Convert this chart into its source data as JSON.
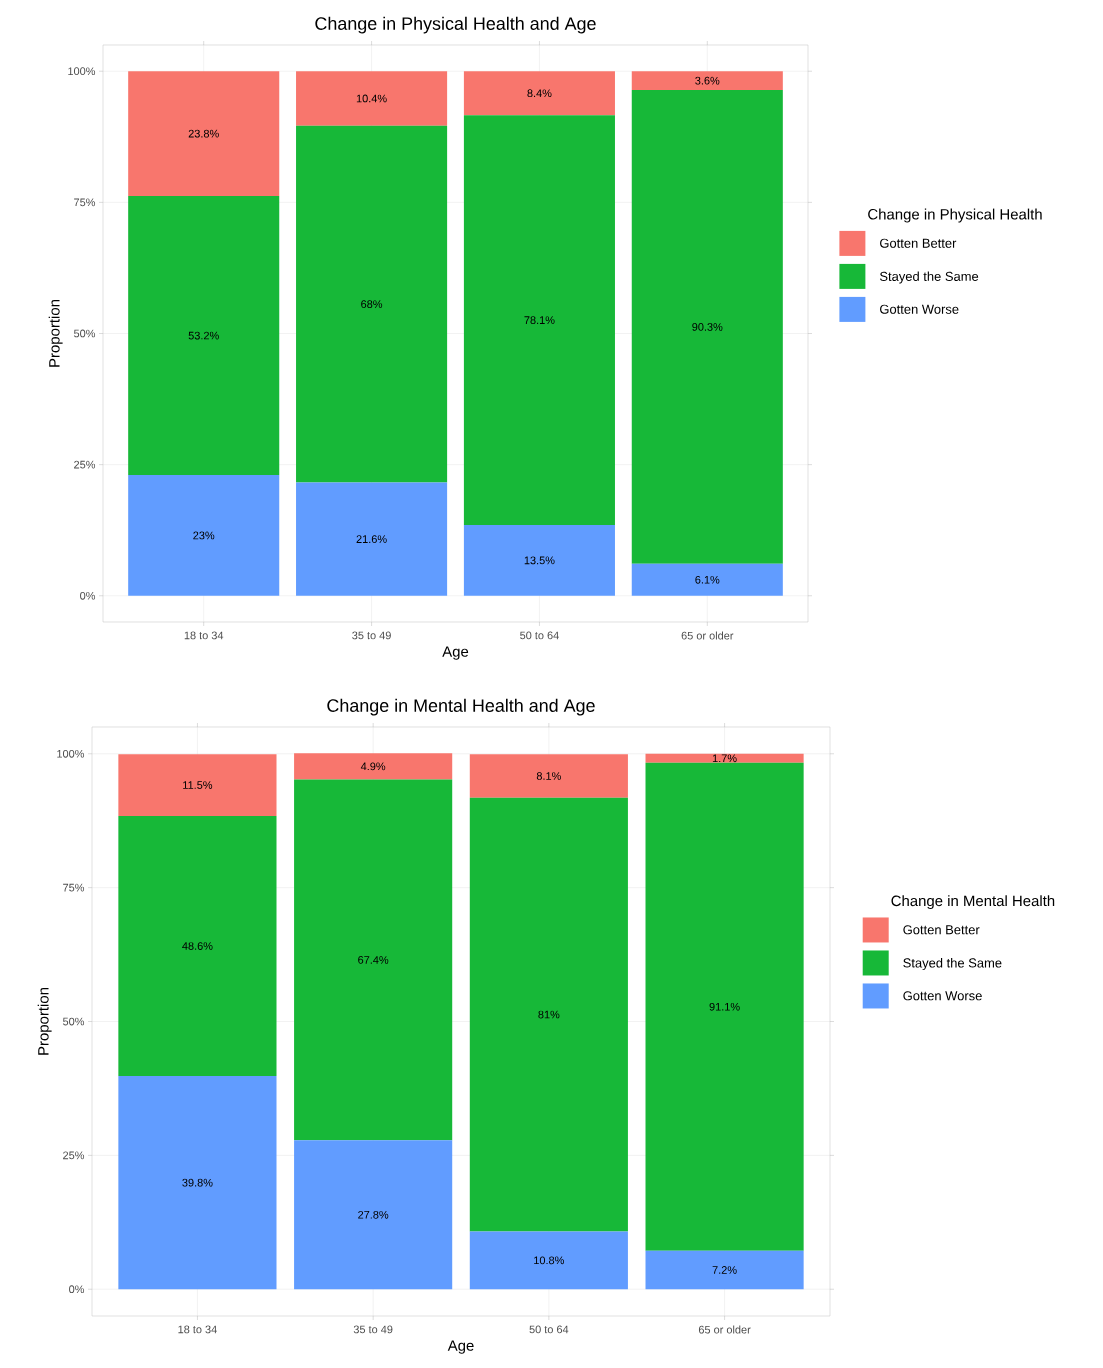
{
  "chart_data": [
    {
      "type": "bar",
      "stacked": true,
      "title": "Change in Physical Health and Age",
      "xlabel": "Age",
      "ylabel": "Proportion",
      "legend_title": "Change in Physical Health",
      "legend": "right",
      "grid": true,
      "categories": [
        "18 to 34",
        "35 to 49",
        "50 to 64",
        "65 or older"
      ],
      "ylim": [
        -5,
        105
      ],
      "yticks": [
        {
          "value": 0,
          "label": "0%"
        },
        {
          "value": 25,
          "label": "25%"
        },
        {
          "value": 50,
          "label": "50%"
        },
        {
          "value": 75,
          "label": "75%"
        },
        {
          "value": 100,
          "label": "100%"
        }
      ],
      "series": [
        {
          "name": "Gotten Worse",
          "color": "#619cff",
          "values": [
            23,
            21.6,
            13.5,
            6.1
          ],
          "value_labels": [
            "23%",
            "21.6%",
            "13.5%",
            "6.1%"
          ]
        },
        {
          "name": "Stayed the Same",
          "color": "#17b838",
          "values": [
            53.2,
            68,
            78.1,
            90.3
          ],
          "value_labels": [
            "53.2%",
            "68%",
            "78.1%",
            "90.3%"
          ]
        },
        {
          "name": "Gotten Better",
          "color": "#f8766d",
          "values": [
            23.8,
            10.4,
            8.4,
            3.6
          ],
          "value_labels": [
            "23.8%",
            "10.4%",
            "8.4%",
            "3.6%"
          ]
        }
      ]
    },
    {
      "type": "bar",
      "stacked": true,
      "title": "Change in Mental Health and Age",
      "xlabel": "Age",
      "ylabel": "Proportion",
      "legend_title": "Change in Mental Health",
      "legend": "right",
      "grid": true,
      "categories": [
        "18 to 34",
        "35 to 49",
        "50 to 64",
        "65 or older"
      ],
      "ylim": [
        -5,
        105
      ],
      "yticks": [
        {
          "value": 0,
          "label": "0%"
        },
        {
          "value": 25,
          "label": "25%"
        },
        {
          "value": 50,
          "label": "50%"
        },
        {
          "value": 75,
          "label": "75%"
        },
        {
          "value": 100,
          "label": "100%"
        }
      ],
      "series": [
        {
          "name": "Gotten Worse",
          "color": "#619cff",
          "values": [
            39.8,
            27.8,
            10.8,
            7.2
          ],
          "value_labels": [
            "39.8%",
            "27.8%",
            "10.8%",
            "7.2%"
          ]
        },
        {
          "name": "Stayed the Same",
          "color": "#17b838",
          "values": [
            48.6,
            67.4,
            81,
            91.1
          ],
          "value_labels": [
            "48.6%",
            "67.4%",
            "81%",
            "91.1%"
          ]
        },
        {
          "name": "Gotten Better",
          "color": "#f8766d",
          "values": [
            11.5,
            4.9,
            8.1,
            1.7
          ],
          "value_labels": [
            "11.5%",
            "4.9%",
            "8.1%",
            "1.7%"
          ]
        }
      ]
    }
  ]
}
